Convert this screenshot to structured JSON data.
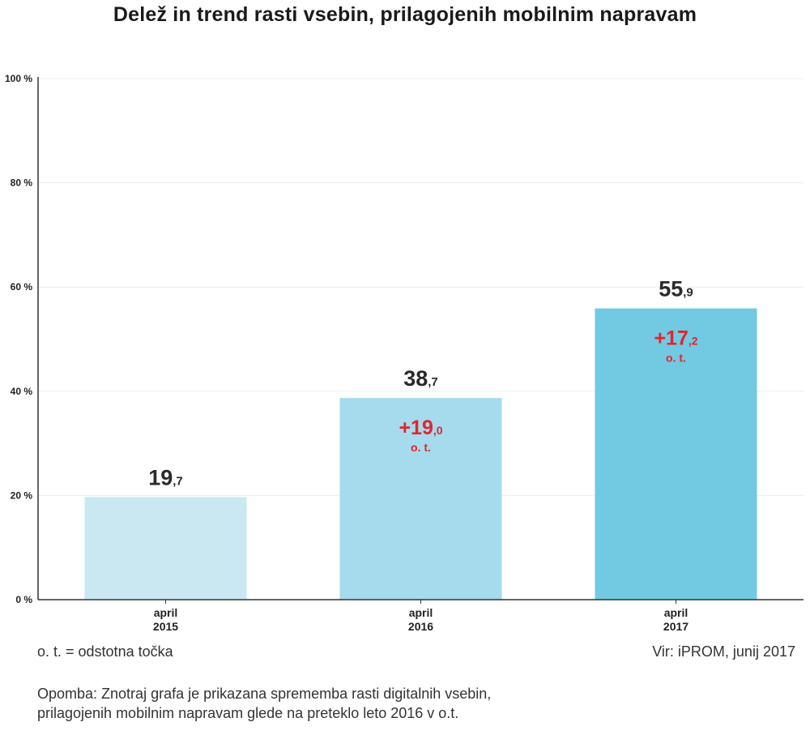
{
  "chart_data": {
    "type": "bar",
    "title": "Delež in trend rasti vsebin, prilagojenih mobilnim napravam",
    "categories": [
      [
        "april",
        "2015"
      ],
      [
        "april",
        "2016"
      ],
      [
        "april",
        "2017"
      ]
    ],
    "values": [
      19.7,
      38.7,
      55.9
    ],
    "value_labels": [
      {
        "main": "19",
        "decimal": ",7"
      },
      {
        "main": "38",
        "decimal": ",7"
      },
      {
        "main": "55",
        "decimal": ",9"
      }
    ],
    "changes": [
      null,
      {
        "main": "+19",
        "decimal": ",0",
        "unit": "o. t."
      },
      {
        "main": "+17",
        "decimal": ",2",
        "unit": "o. t."
      }
    ],
    "bar_colors": [
      "#c9e8f2",
      "#a5dbec",
      "#72c9e2"
    ],
    "change_color": "#e3242b",
    "yticks": [
      "0 %",
      "20 %",
      "40 %",
      "60 %",
      "80 %",
      "100 %"
    ],
    "ylim": [
      0,
      100
    ],
    "grid": true,
    "xlabel": "",
    "ylabel": ""
  },
  "notes": {
    "legend": "o. t. = odstotna točka",
    "source": "Vir: iPROM, junij 2017",
    "remark_line1": "Opomba: Znotraj grafa je prikazana sprememba rasti digitalnih vsebin,",
    "remark_line2": "prilagojenih mobilnim napravam glede na preteklo leto 2016 v o.t."
  }
}
